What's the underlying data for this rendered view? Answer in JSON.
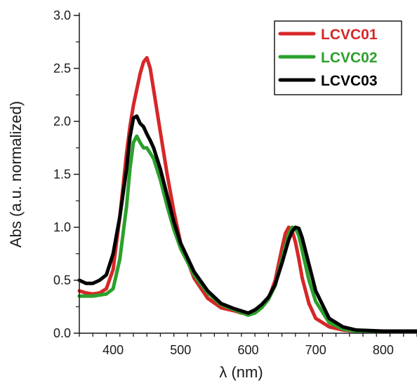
{
  "chart_data": {
    "type": "line",
    "xlabel": "λ (nm)",
    "ylabel": "Abs (a.u. normalized)",
    "xlim": [
      350,
      850
    ],
    "ylim": [
      0,
      3.0
    ],
    "xticks": [
      400,
      500,
      600,
      700,
      800
    ],
    "yticks": [
      "0.0",
      "0.5",
      "1.0",
      "1.5",
      "2.0",
      "2.5",
      "3.0"
    ],
    "grid": false,
    "legend_position": "top-right",
    "series": [
      {
        "name": "LCVC01",
        "color": "#d62728",
        "x": [
          350,
          360,
          370,
          380,
          390,
          400,
          410,
          415,
          420,
          425,
          430,
          435,
          440,
          445,
          450,
          455,
          460,
          470,
          480,
          490,
          500,
          520,
          540,
          560,
          580,
          590,
          600,
          610,
          620,
          630,
          640,
          650,
          655,
          660,
          665,
          670,
          675,
          680,
          690,
          700,
          720,
          740,
          760,
          800,
          850
        ],
        "y": [
          0.4,
          0.38,
          0.37,
          0.38,
          0.42,
          0.6,
          1.1,
          1.4,
          1.7,
          1.95,
          2.15,
          2.3,
          2.45,
          2.56,
          2.6,
          2.5,
          2.3,
          1.9,
          1.5,
          1.15,
          0.85,
          0.52,
          0.33,
          0.24,
          0.21,
          0.19,
          0.18,
          0.2,
          0.25,
          0.32,
          0.5,
          0.8,
          0.94,
          1.0,
          0.97,
          0.86,
          0.7,
          0.52,
          0.28,
          0.14,
          0.06,
          0.03,
          0.02,
          0.02,
          0.02
        ]
      },
      {
        "name": "LCVC02",
        "color": "#2ca02c",
        "x": [
          350,
          360,
          370,
          380,
          390,
          400,
          410,
          420,
          425,
          430,
          435,
          440,
          445,
          450,
          455,
          460,
          470,
          480,
          490,
          500,
          520,
          540,
          560,
          580,
          600,
          610,
          620,
          630,
          640,
          650,
          660,
          665,
          670,
          675,
          680,
          690,
          700,
          720,
          740,
          760,
          800,
          850
        ],
        "y": [
          0.35,
          0.35,
          0.35,
          0.36,
          0.37,
          0.42,
          0.7,
          1.2,
          1.55,
          1.8,
          1.86,
          1.8,
          1.75,
          1.75,
          1.7,
          1.65,
          1.45,
          1.2,
          0.98,
          0.8,
          0.55,
          0.38,
          0.27,
          0.22,
          0.17,
          0.19,
          0.24,
          0.32,
          0.45,
          0.7,
          0.93,
          1.0,
          0.99,
          0.92,
          0.78,
          0.5,
          0.3,
          0.1,
          0.04,
          0.02,
          0.02,
          0.02
        ]
      },
      {
        "name": "LCVC03",
        "color": "#000000",
        "x": [
          350,
          360,
          370,
          380,
          390,
          400,
          410,
          420,
          425,
          430,
          435,
          440,
          445,
          450,
          455,
          460,
          470,
          480,
          490,
          500,
          520,
          540,
          560,
          580,
          600,
          610,
          620,
          630,
          640,
          650,
          660,
          665,
          670,
          675,
          680,
          690,
          700,
          720,
          740,
          760,
          800,
          850
        ],
        "y": [
          0.5,
          0.47,
          0.47,
          0.5,
          0.55,
          0.75,
          1.1,
          1.55,
          1.85,
          2.03,
          2.05,
          1.98,
          1.95,
          1.88,
          1.82,
          1.75,
          1.55,
          1.3,
          1.05,
          0.85,
          0.58,
          0.4,
          0.28,
          0.23,
          0.19,
          0.22,
          0.27,
          0.34,
          0.46,
          0.66,
          0.88,
          0.96,
          1.0,
          0.99,
          0.9,
          0.65,
          0.4,
          0.14,
          0.06,
          0.03,
          0.02,
          0.02
        ]
      }
    ]
  }
}
